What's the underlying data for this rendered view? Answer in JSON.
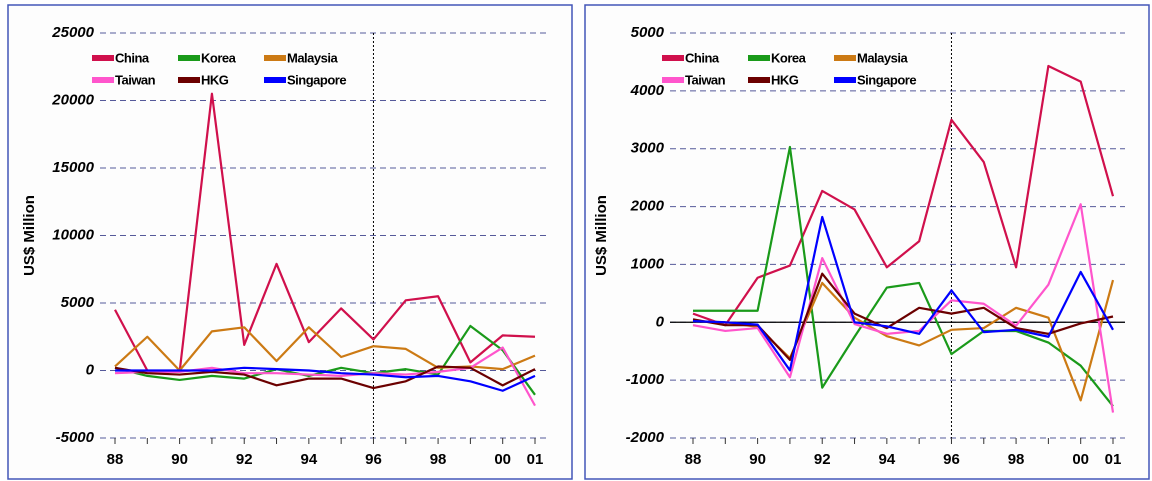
{
  "chart_data": [
    {
      "type": "line",
      "y_label": "US$ Million",
      "categories": [
        "88",
        null,
        "90",
        null,
        "92",
        null,
        "94",
        null,
        "96",
        null,
        "98",
        null,
        "00",
        "01"
      ],
      "ylim": [
        -5000,
        25000
      ],
      "yticks": [
        -5000,
        0,
        5000,
        10000,
        15000,
        20000,
        25000
      ],
      "grid": true,
      "zero_line": false,
      "vline": "96",
      "series": [
        {
          "name": "China",
          "color": "#d0104c",
          "values": [
            4500,
            0,
            -100,
            20500,
            1900,
            7900,
            2100,
            4600,
            2300,
            5200,
            5500,
            600,
            2600,
            2500
          ]
        },
        {
          "name": "Korea",
          "color": "#1a9a1a",
          "values": [
            200,
            -400,
            -700,
            -400,
            -600,
            100,
            -400,
            200,
            -200,
            100,
            -300,
            3300,
            1500,
            -1800
          ]
        },
        {
          "name": "Malaysia",
          "color": "#cc7a14",
          "values": [
            300,
            2500,
            0,
            2900,
            3200,
            700,
            3200,
            1000,
            1800,
            1600,
            200,
            300,
            100,
            1100
          ]
        },
        {
          "name": "Taiwan",
          "color": "#ff55cc",
          "values": [
            -200,
            -100,
            -100,
            200,
            -200,
            -200,
            -300,
            -400,
            -200,
            -300,
            -100,
            200,
            1700,
            -2600
          ]
        },
        {
          "name": "HKG",
          "color": "#6b0000",
          "values": [
            200,
            -200,
            -300,
            -100,
            -300,
            -1100,
            -600,
            -600,
            -1300,
            -800,
            300,
            200,
            -1100,
            100
          ]
        },
        {
          "name": "Singapore",
          "color": "#0000ff",
          "values": [
            0,
            0,
            0,
            0,
            200,
            100,
            0,
            -200,
            -300,
            -500,
            -400,
            -800,
            -1500,
            -400
          ]
        }
      ]
    },
    {
      "type": "line",
      "y_label": "US$ Million",
      "categories": [
        "88",
        null,
        "90",
        null,
        "92",
        null,
        "94",
        null,
        "96",
        null,
        "98",
        null,
        "00",
        "01"
      ],
      "ylim": [
        -2000,
        5000
      ],
      "yticks": [
        -2000,
        -1000,
        0,
        1000,
        2000,
        3000,
        4000,
        5000
      ],
      "grid": true,
      "zero_line": true,
      "vline": "96",
      "series": [
        {
          "name": "China",
          "color": "#d0104c",
          "values": [
            150,
            -50,
            770,
            980,
            2270,
            1950,
            950,
            1400,
            3500,
            2770,
            950,
            4430,
            4160,
            2180
          ]
        },
        {
          "name": "Korea",
          "color": "#1a9a1a",
          "values": [
            200,
            200,
            200,
            3030,
            -1130,
            -250,
            600,
            680,
            -550,
            -150,
            -150,
            -350,
            -750,
            -1450
          ]
        },
        {
          "name": "Malaysia",
          "color": "#cc7a14",
          "values": [
            20,
            0,
            -80,
            -620,
            680,
            80,
            -240,
            -400,
            -130,
            -100,
            250,
            80,
            -1350,
            730
          ]
        },
        {
          "name": "Taiwan",
          "color": "#ff55cc",
          "values": [
            -50,
            -150,
            -100,
            -950,
            1110,
            -30,
            -200,
            -150,
            380,
            320,
            -60,
            650,
            2040,
            -1560
          ]
        },
        {
          "name": "HKG",
          "color": "#6b0000",
          "values": [
            50,
            -50,
            -50,
            -650,
            840,
            150,
            -100,
            250,
            150,
            250,
            -100,
            -200,
            -20,
            100
          ]
        },
        {
          "name": "Singapore",
          "color": "#0000ff",
          "values": [
            20,
            0,
            -40,
            -830,
            1820,
            0,
            -70,
            -200,
            550,
            -170,
            -130,
            -250,
            870,
            -130
          ]
        }
      ]
    }
  ]
}
